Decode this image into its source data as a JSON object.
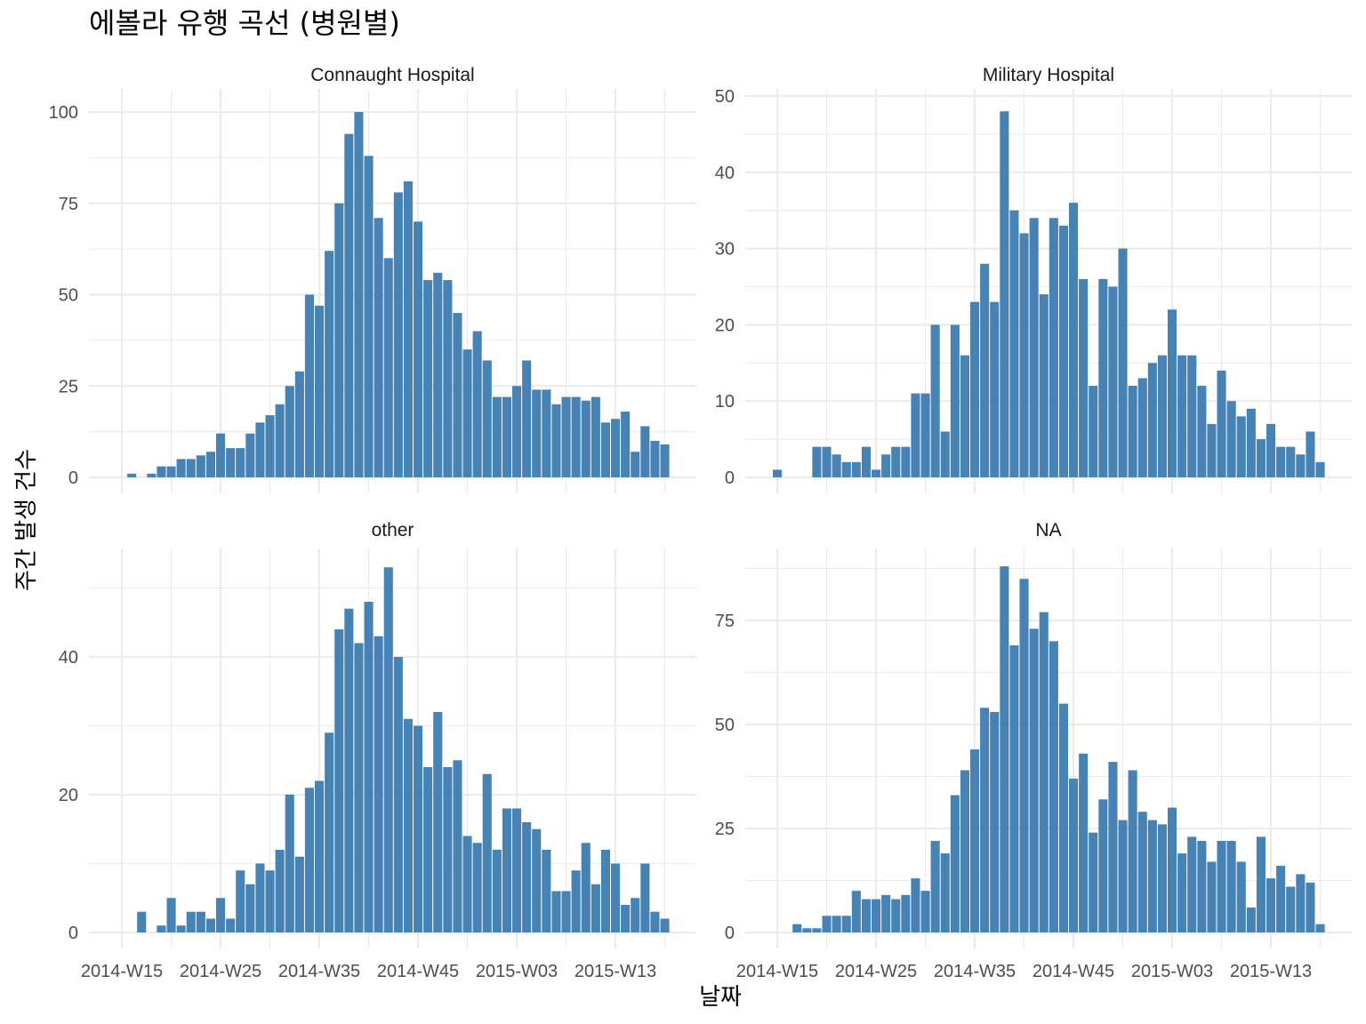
{
  "chart_data": {
    "type": "bar",
    "title": "에볼라 유행 곡선 (병원별)",
    "xlabel": "날짜",
    "ylabel": "주간 발생 건수",
    "bar_color": "#4682B4",
    "x_start_week": "2014-W15",
    "x_end_week": "2015-W18",
    "x_tick_labels": [
      "2014-W15",
      "2014-W25",
      "2014-W35",
      "2014-W45",
      "2015-W03",
      "2015-W13"
    ],
    "grid": true,
    "facets": [
      {
        "name": "Connaught Hospital",
        "yticks": [
          0,
          25,
          50,
          75,
          100
        ],
        "values": [
          0,
          1,
          0,
          1,
          3,
          3,
          5,
          5,
          6,
          7,
          12,
          8,
          8,
          12,
          15,
          17,
          20,
          25,
          29,
          50,
          47,
          62,
          75,
          94,
          100,
          88,
          71,
          60,
          78,
          81,
          70,
          54,
          56,
          54,
          45,
          35,
          40,
          32,
          22,
          22,
          25,
          32,
          24,
          24,
          20,
          22,
          22,
          21,
          22,
          15,
          16,
          18,
          7,
          14,
          10,
          9
        ]
      },
      {
        "name": "Military Hospital",
        "yticks": [
          0,
          10,
          20,
          30,
          40,
          50
        ],
        "values": [
          1,
          0,
          0,
          0,
          4,
          4,
          3,
          2,
          2,
          4,
          1,
          3,
          4,
          4,
          11,
          11,
          20,
          6,
          20,
          16,
          23,
          28,
          23,
          48,
          35,
          32,
          34,
          24,
          34,
          33,
          36,
          26,
          12,
          26,
          25,
          30,
          12,
          13,
          15,
          16,
          22,
          16,
          16,
          12,
          7,
          14,
          10,
          8,
          9,
          5,
          7,
          4,
          4,
          3,
          6,
          2
        ]
      },
      {
        "name": "other",
        "yticks": [
          0,
          20,
          40
        ],
        "values": [
          0,
          0,
          3,
          0,
          1,
          5,
          1,
          3,
          3,
          2,
          5,
          2,
          9,
          7,
          10,
          9,
          12,
          20,
          11,
          21,
          22,
          29,
          44,
          47,
          42,
          48,
          43,
          53,
          40,
          31,
          30,
          24,
          32,
          24,
          25,
          14,
          13,
          23,
          12,
          18,
          18,
          16,
          15,
          12,
          6,
          6,
          9,
          13,
          7,
          12,
          10,
          4,
          5,
          10,
          3,
          2
        ]
      },
      {
        "name": "NA",
        "yticks": [
          0,
          25,
          50,
          75
        ],
        "values": [
          0,
          0,
          2,
          1,
          1,
          4,
          4,
          4,
          10,
          8,
          8,
          9,
          8,
          9,
          13,
          10,
          22,
          19,
          33,
          39,
          44,
          54,
          53,
          88,
          69,
          85,
          73,
          77,
          70,
          55,
          37,
          43,
          24,
          32,
          41,
          27,
          39,
          29,
          27,
          26,
          30,
          19,
          23,
          22,
          17,
          22,
          22,
          17,
          6,
          23,
          13,
          16,
          11,
          14,
          12,
          2
        ]
      }
    ]
  }
}
